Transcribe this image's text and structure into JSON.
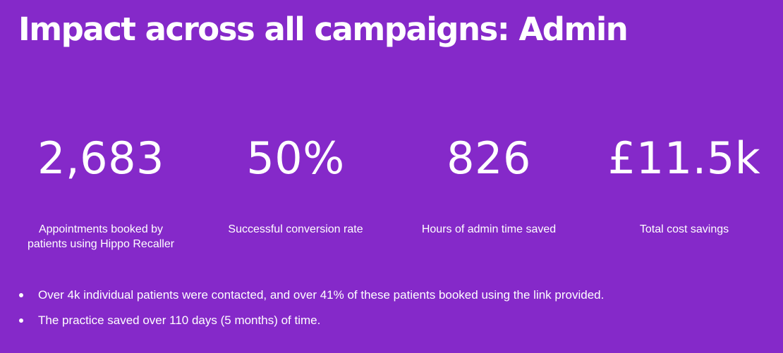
{
  "page": {
    "title": "Impact across all campaigns: Admin"
  },
  "stats": [
    {
      "value": "2,683",
      "label": "Appointments booked by patients using Hippo Recaller"
    },
    {
      "value": "50%",
      "label": "Successful conversion rate"
    },
    {
      "value": "826",
      "label": "Hours of admin time saved"
    },
    {
      "value": "£11.5k",
      "label": "Total cost savings"
    }
  ],
  "bullets": [
    "Over 4k individual patients were contacted, and over 41% of these patients booked using the link provided.",
    "The practice saved over 110 days (5 months) of time."
  ],
  "colors": {
    "background": "#8529c9",
    "text": "#ffffff"
  }
}
